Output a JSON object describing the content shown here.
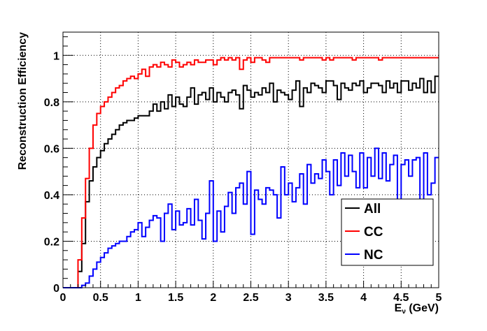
{
  "chart_data": {
    "type": "line",
    "step": true,
    "xlabel": "E",
    "xlabel_sub": "ν",
    "xlabel_unit": " (GeV)",
    "ylabel": "Reconstruction Efficiency",
    "xlim": [
      0,
      5
    ],
    "ylim": [
      0,
      1.1
    ],
    "grid": true,
    "legend_position": "bottom-right",
    "x_ticks": [
      "0",
      "0.5",
      "1",
      "1.5",
      "2",
      "2.5",
      "3",
      "3.5",
      "4",
      "4.5",
      "5"
    ],
    "y_ticks": [
      "0",
      "0.2",
      "0.4",
      "0.6",
      "0.8",
      "1"
    ],
    "bin_width": 0.05,
    "series": [
      {
        "name": "All",
        "color": "#000000",
        "values": [
          0.0,
          0.0,
          0.0,
          0.0,
          0.07,
          0.19,
          0.37,
          0.46,
          0.52,
          0.56,
          0.59,
          0.62,
          0.64,
          0.66,
          0.68,
          0.7,
          0.71,
          0.72,
          0.72,
          0.73,
          0.74,
          0.74,
          0.74,
          0.76,
          0.79,
          0.76,
          0.8,
          0.77,
          0.83,
          0.78,
          0.82,
          0.79,
          0.78,
          0.82,
          0.86,
          0.79,
          0.83,
          0.84,
          0.81,
          0.86,
          0.8,
          0.84,
          0.82,
          0.8,
          0.84,
          0.85,
          0.83,
          0.77,
          0.87,
          0.85,
          0.82,
          0.84,
          0.83,
          0.86,
          0.84,
          0.88,
          0.8,
          0.85,
          0.84,
          0.83,
          0.81,
          0.85,
          0.89,
          0.78,
          0.86,
          0.84,
          0.88,
          0.87,
          0.86,
          0.84,
          0.89,
          0.89,
          0.87,
          0.81,
          0.88,
          0.86,
          0.85,
          0.88,
          0.87,
          0.89,
          0.84,
          0.86,
          0.88,
          0.88,
          0.87,
          0.84,
          0.89,
          0.86,
          0.88,
          0.84,
          0.89,
          0.89,
          0.85,
          0.88,
          0.86,
          0.9,
          0.84,
          0.89,
          0.84,
          0.91
        ]
      },
      {
        "name": "CC",
        "color": "#ff0000",
        "values": [
          0.0,
          0.0,
          0.0,
          0.0,
          0.12,
          0.3,
          0.47,
          0.6,
          0.7,
          0.75,
          0.78,
          0.8,
          0.82,
          0.84,
          0.86,
          0.87,
          0.89,
          0.9,
          0.91,
          0.9,
          0.92,
          0.94,
          0.91,
          0.95,
          0.96,
          0.95,
          0.97,
          0.96,
          0.95,
          0.98,
          0.97,
          0.95,
          0.96,
          0.97,
          0.96,
          0.98,
          0.97,
          0.97,
          0.98,
          0.98,
          0.96,
          0.98,
          0.99,
          0.98,
          0.99,
          0.98,
          0.99,
          0.94,
          0.98,
          0.99,
          0.97,
          0.99,
          0.99,
          0.98,
          0.97,
          0.99,
          0.99,
          0.99,
          0.99,
          0.99,
          0.99,
          0.99,
          0.99,
          0.98,
          0.99,
          0.99,
          0.99,
          0.99,
          0.99,
          0.98,
          0.99,
          0.98,
          0.99,
          0.99,
          0.99,
          0.99,
          0.99,
          0.98,
          0.99,
          0.99,
          0.99,
          0.99,
          0.99,
          0.99,
          0.98,
          0.99,
          0.99,
          0.99,
          0.99,
          0.99,
          0.99,
          0.99,
          0.99,
          0.99,
          0.99,
          0.99,
          0.99,
          0.99,
          0.99,
          0.99
        ]
      },
      {
        "name": "NC",
        "color": "#0000ff",
        "values": [
          0.0,
          0.0,
          0.0,
          0.0,
          0.0,
          0.01,
          0.02,
          0.05,
          0.08,
          0.11,
          0.13,
          0.15,
          0.17,
          0.18,
          0.19,
          0.2,
          0.2,
          0.22,
          0.24,
          0.25,
          0.28,
          0.22,
          0.26,
          0.29,
          0.31,
          0.3,
          0.2,
          0.32,
          0.36,
          0.25,
          0.33,
          0.27,
          0.28,
          0.34,
          0.27,
          0.38,
          0.29,
          0.21,
          0.32,
          0.46,
          0.2,
          0.33,
          0.24,
          0.35,
          0.41,
          0.32,
          0.43,
          0.45,
          0.36,
          0.5,
          0.23,
          0.42,
          0.38,
          0.36,
          0.43,
          0.42,
          0.4,
          0.3,
          0.52,
          0.4,
          0.45,
          0.37,
          0.43,
          0.49,
          0.36,
          0.53,
          0.45,
          0.49,
          0.47,
          0.55,
          0.5,
          0.4,
          0.55,
          0.44,
          0.58,
          0.48,
          0.57,
          0.5,
          0.43,
          0.58,
          0.43,
          0.56,
          0.48,
          0.6,
          0.47,
          0.58,
          0.46,
          0.53,
          0.57,
          0.37,
          0.53,
          0.55,
          0.48,
          0.55,
          0.56,
          0.36,
          0.58,
          0.4,
          0.45,
          0.56
        ]
      }
    ]
  }
}
